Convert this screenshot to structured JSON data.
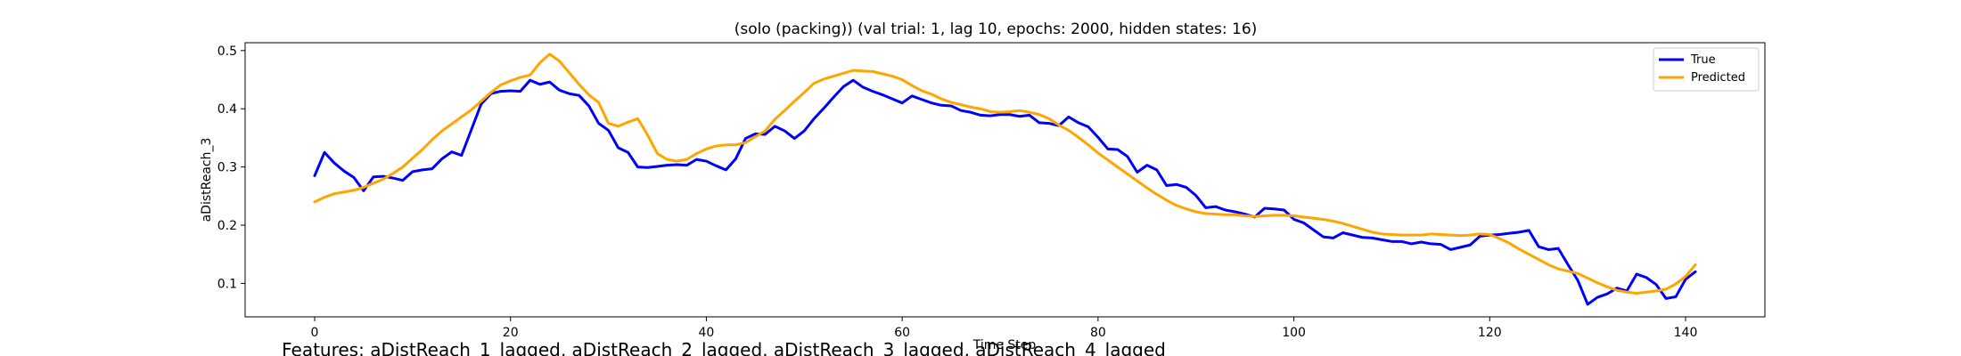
{
  "chart_data": {
    "type": "line",
    "title": "(solo (packing)) (val trial: 1, lag 10, epochs: 2000, hidden states: 16)",
    "xlabel": "Time Step",
    "ylabel": "aDistReach_3",
    "footer": "Features: aDistReach_1_lagged, aDistReach_2_lagged, aDistReach_3_lagged, aDistReach_4_lagged",
    "xlim": [
      -7.1,
      148.1
    ],
    "ylim": [
      0.0425,
      0.5135
    ],
    "xticks": [
      0,
      20,
      40,
      60,
      80,
      100,
      120,
      140
    ],
    "yticks": [
      0.1,
      0.2,
      0.3,
      0.4,
      0.5
    ],
    "legend_position": "top-right",
    "grid": false,
    "series": [
      {
        "name": "True",
        "color": "#0000ff",
        "values": [
          0.285,
          0.325,
          0.307,
          0.293,
          0.282,
          0.259,
          0.283,
          0.284,
          0.281,
          0.277,
          0.292,
          0.295,
          0.297,
          0.314,
          0.326,
          0.32,
          0.364,
          0.408,
          0.426,
          0.43,
          0.431,
          0.43,
          0.449,
          0.442,
          0.446,
          0.432,
          0.426,
          0.423,
          0.405,
          0.375,
          0.363,
          0.333,
          0.325,
          0.3,
          0.299,
          0.301,
          0.303,
          0.304,
          0.303,
          0.313,
          0.31,
          0.302,
          0.295,
          0.314,
          0.349,
          0.357,
          0.356,
          0.37,
          0.362,
          0.349,
          0.362,
          0.383,
          0.401,
          0.42,
          0.438,
          0.449,
          0.437,
          0.43,
          0.424,
          0.417,
          0.41,
          0.422,
          0.416,
          0.41,
          0.406,
          0.405,
          0.397,
          0.394,
          0.389,
          0.388,
          0.39,
          0.39,
          0.387,
          0.389,
          0.376,
          0.375,
          0.371,
          0.386,
          0.376,
          0.369,
          0.351,
          0.331,
          0.33,
          0.318,
          0.291,
          0.303,
          0.295,
          0.268,
          0.27,
          0.265,
          0.251,
          0.23,
          0.232,
          0.226,
          0.223,
          0.219,
          0.214,
          0.229,
          0.228,
          0.226,
          0.21,
          0.204,
          0.192,
          0.18,
          0.178,
          0.187,
          0.183,
          0.179,
          0.178,
          0.175,
          0.172,
          0.172,
          0.168,
          0.171,
          0.168,
          0.167,
          0.158,
          0.162,
          0.166,
          0.181,
          0.183,
          0.184,
          0.186,
          0.188,
          0.191,
          0.163,
          0.158,
          0.16,
          0.132,
          0.105,
          0.064,
          0.076,
          0.082,
          0.092,
          0.087,
          0.116,
          0.11,
          0.098,
          0.074,
          0.077,
          0.107,
          0.12
        ]
      },
      {
        "name": "Predicted",
        "color": "#ffa500",
        "values": [
          0.24,
          0.248,
          0.254,
          0.257,
          0.26,
          0.265,
          0.272,
          0.279,
          0.289,
          0.3,
          0.315,
          0.33,
          0.347,
          0.362,
          0.374,
          0.386,
          0.398,
          0.413,
          0.428,
          0.441,
          0.448,
          0.454,
          0.458,
          0.479,
          0.494,
          0.482,
          0.462,
          0.442,
          0.424,
          0.411,
          0.375,
          0.37,
          0.377,
          0.383,
          0.355,
          0.323,
          0.313,
          0.31,
          0.313,
          0.323,
          0.331,
          0.336,
          0.338,
          0.338,
          0.342,
          0.352,
          0.362,
          0.382,
          0.397,
          0.413,
          0.428,
          0.444,
          0.451,
          0.456,
          0.461,
          0.466,
          0.465,
          0.464,
          0.46,
          0.456,
          0.45,
          0.44,
          0.431,
          0.425,
          0.417,
          0.411,
          0.407,
          0.403,
          0.4,
          0.395,
          0.394,
          0.395,
          0.397,
          0.394,
          0.39,
          0.383,
          0.372,
          0.363,
          0.351,
          0.338,
          0.324,
          0.312,
          0.3,
          0.288,
          0.276,
          0.264,
          0.253,
          0.243,
          0.234,
          0.228,
          0.223,
          0.22,
          0.219,
          0.218,
          0.218,
          0.216,
          0.215,
          0.216,
          0.217,
          0.217,
          0.216,
          0.214,
          0.212,
          0.21,
          0.207,
          0.203,
          0.198,
          0.193,
          0.188,
          0.185,
          0.184,
          0.183,
          0.183,
          0.183,
          0.185,
          0.184,
          0.183,
          0.182,
          0.183,
          0.185,
          0.184,
          0.177,
          0.169,
          0.159,
          0.15,
          0.141,
          0.132,
          0.125,
          0.121,
          0.117,
          0.109,
          0.101,
          0.094,
          0.088,
          0.085,
          0.083,
          0.085,
          0.087,
          0.09,
          0.099,
          0.112,
          0.132
        ]
      }
    ]
  }
}
